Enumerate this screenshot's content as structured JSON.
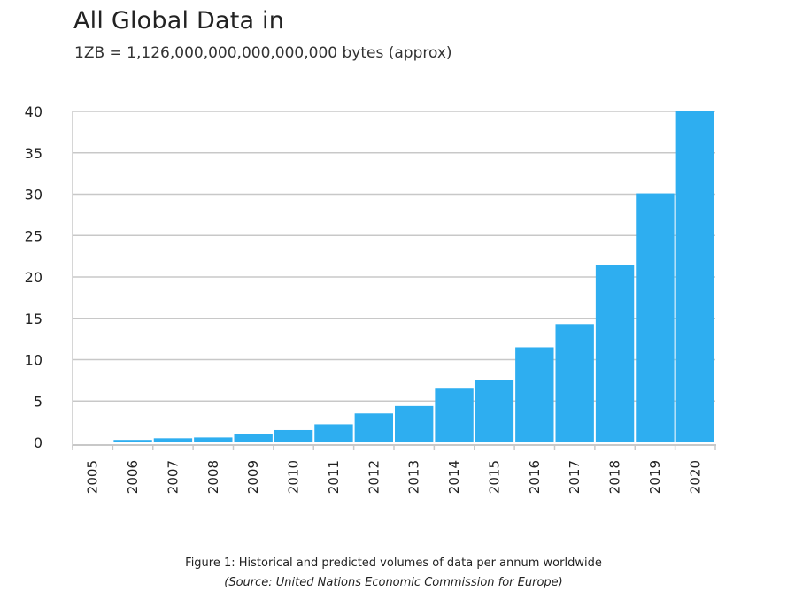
{
  "chart_data": {
    "type": "bar",
    "title": "All Global Data in",
    "subtitle": "1ZB = 1,126,000,000,000,000,000 bytes (approx)",
    "categories": [
      "2005",
      "2006",
      "2007",
      "2008",
      "2009",
      "2010",
      "2011",
      "2012",
      "2013",
      "2014",
      "2015",
      "2016",
      "2017",
      "2018",
      "2019",
      "2020"
    ],
    "values": [
      0.1,
      0.3,
      0.5,
      0.6,
      1.0,
      1.5,
      2.2,
      3.5,
      4.4,
      6.5,
      7.5,
      11.5,
      14.3,
      21.4,
      30.1,
      40.1
    ],
    "ylim": [
      0,
      40
    ],
    "yticks": [
      0,
      5,
      10,
      15,
      20,
      25,
      30,
      35,
      40
    ],
    "grid": true,
    "legend": "none",
    "bar_color": "#2eaef0"
  },
  "caption": {
    "line1": "Figure 1: Historical and predicted volumes of data per annum worldwide",
    "line2": "(Source: United Nations Economic Commission for Europe)"
  }
}
